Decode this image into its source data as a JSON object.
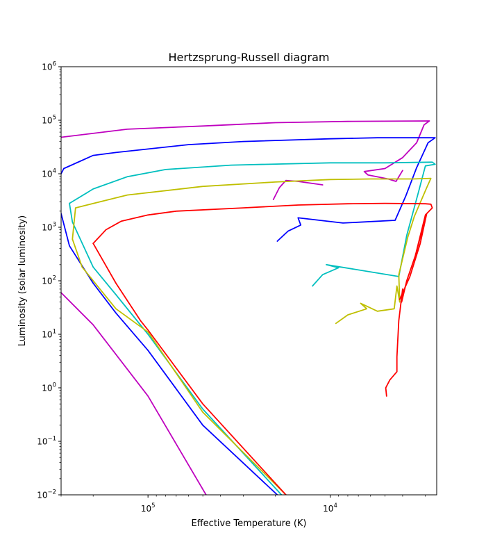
{
  "chart_data": {
    "type": "line",
    "title": "Hertzsprung-Russell diagram",
    "xlabel": "Effective Temperature (K)",
    "ylabel": "Luminosity (solar luminosity)",
    "xscale": "log",
    "yscale": "log",
    "x_inverted": true,
    "xlim": [
      300000,
      2600
    ],
    "ylim": [
      0.01,
      1000000
    ],
    "grid": false,
    "x_ticks": [
      {
        "value": 100000,
        "base": "10",
        "exp": "5"
      },
      {
        "value": 10000,
        "base": "10",
        "exp": "4"
      }
    ],
    "y_ticks": [
      {
        "value": 0.01,
        "base": "10",
        "exp": "−2"
      },
      {
        "value": 0.1,
        "base": "10",
        "exp": "−1"
      },
      {
        "value": 1,
        "base": "10",
        "exp": "0"
      },
      {
        "value": 10,
        "base": "10",
        "exp": "1"
      },
      {
        "value": 100,
        "base": "10",
        "exp": "2"
      },
      {
        "value": 1000,
        "base": "10",
        "exp": "3"
      },
      {
        "value": 10000,
        "base": "10",
        "exp": "4"
      },
      {
        "value": 100000,
        "base": "10",
        "exp": "5"
      },
      {
        "value": 1000000,
        "base": "10",
        "exp": "6"
      }
    ],
    "series": [
      {
        "color": "#bf00bf",
        "tracks": [
          [
            [
              300000,
              60
            ],
            [
              200000,
              15
            ],
            [
              100000,
              0.7
            ],
            [
              48000,
              0.01
            ]
          ],
          [
            [
              300000,
              48000
            ],
            [
              130000,
              68000
            ],
            [
              50000,
              78000
            ],
            [
              20000,
              90000
            ],
            [
              8000,
              95000
            ],
            [
              2850,
              97000
            ],
            [
              3050,
              82000
            ],
            [
              3350,
              38000
            ],
            [
              4000,
              20000
            ],
            [
              5000,
              12500
            ],
            [
              6500,
              11000
            ],
            [
              6200,
              9500
            ],
            [
              4800,
              8000
            ],
            [
              4350,
              7200
            ],
            [
              4000,
              11500
            ]
          ],
          [
            [
              11000,
              6200
            ],
            [
              15000,
              7200
            ],
            [
              17500,
              7500
            ],
            [
              19000,
              5500
            ],
            [
              20500,
              3300
            ]
          ]
        ]
      },
      {
        "color": "#0000ff",
        "tracks": [
          [
            [
              300000,
              1800
            ],
            [
              270000,
              450
            ],
            [
              200000,
              90
            ],
            [
              150000,
              25
            ],
            [
              100000,
              5
            ],
            [
              50000,
              0.2
            ],
            [
              19500,
              0.01
            ]
          ],
          [
            [
              300000,
              10000
            ],
            [
              290000,
              12500
            ],
            [
              200000,
              22000
            ],
            [
              150000,
              25000
            ],
            [
              60000,
              35000
            ],
            [
              30000,
              40000
            ],
            [
              10000,
              45000
            ],
            [
              5500,
              47000
            ],
            [
              3100,
              47000
            ],
            [
              2650,
              47000
            ],
            [
              2900,
              38000
            ],
            [
              3350,
              13000
            ],
            [
              3850,
              3800
            ],
            [
              4400,
              1350
            ],
            [
              8500,
              1200
            ],
            [
              15000,
              1500
            ],
            [
              14500,
              1100
            ],
            [
              17000,
              850
            ],
            [
              19500,
              550
            ]
          ]
        ]
      },
      {
        "color": "#00bfbf",
        "tracks": [
          [
            [
              270000,
              2800
            ],
            [
              260000,
              1250
            ],
            [
              200000,
              180
            ],
            [
              150000,
              55
            ],
            [
              100000,
              10
            ],
            [
              50000,
              0.4
            ],
            [
              18500,
              0.01
            ]
          ],
          [
            [
              270000,
              2800
            ],
            [
              200000,
              5200
            ],
            [
              130000,
              8800
            ],
            [
              80000,
              12000
            ],
            [
              35000,
              14500
            ],
            [
              10000,
              16000
            ],
            [
              5000,
              16000
            ],
            [
              2750,
              16500
            ],
            [
              2650,
              15000
            ],
            [
              3000,
              14000
            ],
            [
              3250,
              5000
            ],
            [
              3800,
              700
            ],
            [
              4200,
              120
            ],
            [
              10500,
              200
            ],
            [
              9000,
              175
            ],
            [
              11000,
              130
            ],
            [
              12500,
              80
            ]
          ]
        ]
      },
      {
        "color": "#bfbf00",
        "tracks": [
          [
            [
              260000,
              600
            ],
            [
              230000,
              180
            ],
            [
              150000,
              30
            ],
            [
              100000,
              11
            ],
            [
              50000,
              0.35
            ],
            [
              17500,
              0.01
            ]
          ],
          [
            [
              260000,
              600
            ],
            [
              250000,
              2300
            ],
            [
              130000,
              4000
            ],
            [
              50000,
              5800
            ],
            [
              20000,
              7000
            ],
            [
              10000,
              7800
            ],
            [
              6000,
              8000
            ],
            [
              3500,
              8000
            ],
            [
              2800,
              8200
            ],
            [
              2950,
              5500
            ],
            [
              3450,
              1600
            ],
            [
              3750,
              650
            ],
            [
              4200,
              130
            ],
            [
              4150,
              40
            ],
            [
              4300,
              80
            ],
            [
              4450,
              30
            ],
            [
              5500,
              27
            ],
            [
              6800,
              38
            ],
            [
              6300,
              30
            ],
            [
              8000,
              23
            ],
            [
              9300,
              16
            ]
          ]
        ]
      },
      {
        "color": "#ff0000",
        "tracks": [
          [
            [
              200000,
              500
            ],
            [
              150000,
              90
            ],
            [
              110000,
              18
            ],
            [
              100000,
              12
            ],
            [
              50000,
              0.5
            ],
            [
              17500,
              0.01
            ]
          ],
          [
            [
              200000,
              500
            ],
            [
              170000,
              900
            ],
            [
              140000,
              1300
            ],
            [
              100000,
              1700
            ],
            [
              70000,
              2000
            ],
            [
              30000,
              2300
            ],
            [
              15000,
              2600
            ],
            [
              8000,
              2750
            ],
            [
              5000,
              2800
            ],
            [
              3000,
              2750
            ],
            [
              2800,
              2700
            ],
            [
              2750,
              2300
            ],
            [
              3000,
              1700
            ],
            [
              3400,
              300
            ],
            [
              3800,
              100
            ],
            [
              4050,
              40
            ],
            [
              4000,
              70
            ],
            [
              4200,
              18
            ],
            [
              4300,
              3.8
            ],
            [
              4300,
              2
            ],
            [
              4700,
              1.4
            ],
            [
              4950,
              1
            ],
            [
              4900,
              0.7
            ]
          ],
          [
            [
              3400,
              300
            ],
            [
              2950,
              1800
            ],
            [
              3200,
              500
            ],
            [
              3650,
              120
            ],
            [
              4150,
              45
            ]
          ]
        ]
      }
    ]
  }
}
